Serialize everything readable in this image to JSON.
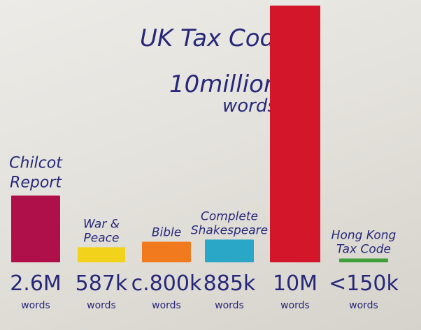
{
  "chart_data": {
    "type": "bar",
    "title_lines": [
      "UK Tax Code",
      "10million",
      "words"
    ],
    "categories": [
      {
        "label_lines": [
          "Chilcot",
          "Report"
        ],
        "value_label": "2.6M",
        "unit": "words",
        "value": 2600000,
        "color": "#b0104a"
      },
      {
        "label_lines": [
          "War &",
          "Peace"
        ],
        "value_label": "587k",
        "unit": "words",
        "value": 587000,
        "color": "#f3d21c"
      },
      {
        "label_lines": [
          "Bible"
        ],
        "value_label": "c.800k",
        "unit": "words",
        "value": 800000,
        "color": "#f27a1e"
      },
      {
        "label_lines": [
          "Complete",
          "Shakespeare"
        ],
        "value_label": "885k",
        "unit": "words",
        "value": 885000,
        "color": "#2aa7c6"
      },
      {
        "label_lines": [],
        "value_label": "10M",
        "unit": "words",
        "value": 10000000,
        "color": "#d4162a"
      },
      {
        "label_lines": [
          "Hong Kong",
          "Tax Code"
        ],
        "value_label": "<150k",
        "unit": "words",
        "value": 150000,
        "color": "#3f9f3a"
      }
    ],
    "ylim": [
      0,
      10000000
    ],
    "grid": false
  }
}
